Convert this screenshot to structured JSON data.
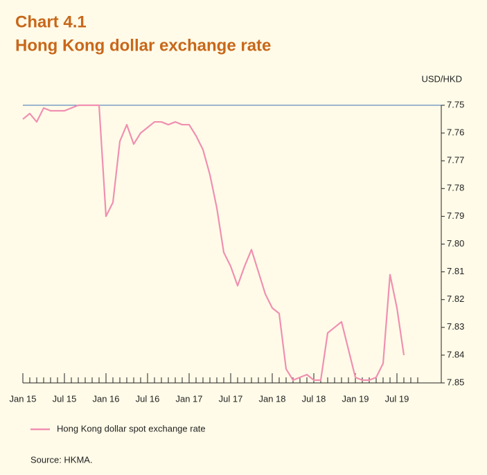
{
  "chart_data": {
    "type": "line",
    "title": "Chart 4.1",
    "subtitle": "Hong Kong dollar exchange rate",
    "y_axis_label": "USD/HKD",
    "source": "Source: HKMA.",
    "categories": [
      "Jan 15",
      null,
      null,
      null,
      null,
      null,
      "Jul 15",
      null,
      null,
      null,
      null,
      null,
      "Jan 16",
      null,
      null,
      null,
      null,
      null,
      "Jul 16",
      null,
      null,
      null,
      null,
      null,
      "Jan 17",
      null,
      null,
      null,
      null,
      null,
      "Jul 17",
      null,
      null,
      null,
      null,
      null,
      "Jan 18",
      null,
      null,
      null,
      null,
      null,
      "Jul 18",
      null,
      null,
      null,
      null,
      null,
      "Jan 19",
      null,
      null,
      null,
      null,
      null,
      "Jul 19",
      null,
      null,
      null
    ],
    "series": [
      {
        "name": "Hong Kong dollar spot exchange rate",
        "color": "#f08fb1",
        "values": [
          7.755,
          7.753,
          7.756,
          7.751,
          7.752,
          7.752,
          7.752,
          7.751,
          7.75,
          7.75,
          7.75,
          7.75,
          7.79,
          7.785,
          7.763,
          7.757,
          7.764,
          7.76,
          7.758,
          7.756,
          7.756,
          7.757,
          7.756,
          7.757,
          7.757,
          7.761,
          7.766,
          7.775,
          7.787,
          7.803,
          7.808,
          7.815,
          7.808,
          7.802,
          7.81,
          7.818,
          7.823,
          7.825,
          7.845,
          7.849,
          7.848,
          7.847,
          7.849,
          7.849,
          7.832,
          7.83,
          7.828,
          7.838,
          7.848,
          7.849,
          7.849,
          7.848,
          7.843,
          7.811,
          7.823,
          7.84,
          null,
          null
        ]
      }
    ],
    "ylim": [
      7.75,
      7.85
    ],
    "y_inverted": true,
    "y_axis_side": "right",
    "yticks": [
      7.75,
      7.76,
      7.77,
      7.78,
      7.79,
      {
        "value": 7.8,
        "label": "7.80"
      },
      7.81,
      7.82,
      7.83,
      7.84,
      7.85
    ],
    "grid": false,
    "legend": "bottom-left"
  }
}
